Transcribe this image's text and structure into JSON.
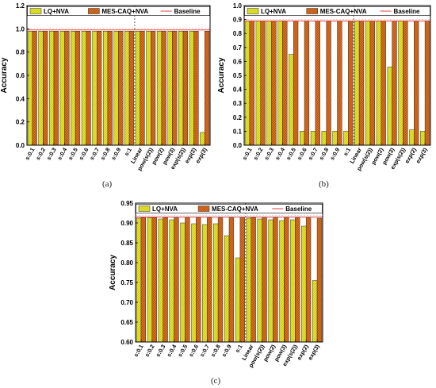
{
  "colors": {
    "lq": "#e4e62a",
    "mes": "#e0701e",
    "baseline": "#e04040"
  },
  "captions": [
    "(a)",
    "(b)",
    "(c)"
  ],
  "chart_data": [
    {
      "type": "bar",
      "ylabel": "Accuracy",
      "ylim": [
        0.0,
        1.2
      ],
      "yticks": [
        "0.0",
        "0.2",
        "0.4",
        "0.6",
        "0.8",
        "1.0",
        "1.2"
      ],
      "categories": [
        "s:0.1",
        "s:0.2",
        "s:0.3",
        "s:0.4",
        "s:0.5",
        "s:0.6",
        "s:0.7",
        "s:0.8",
        "s:0.9",
        "s:1",
        "Linear",
        "pow(s(2))",
        "pow(2)",
        "pow(3)",
        "exp(s(2))",
        "exp(2)",
        "exp(3)"
      ],
      "series": [
        {
          "name": "LQ+NVA",
          "values": [
            0.98,
            0.98,
            0.98,
            0.98,
            0.98,
            0.98,
            0.98,
            0.98,
            0.98,
            0.98,
            0.98,
            0.98,
            0.98,
            0.98,
            0.98,
            0.98,
            0.11
          ]
        },
        {
          "name": "MES-CAQ+NVA",
          "values": [
            0.98,
            0.98,
            0.98,
            0.98,
            0.98,
            0.98,
            0.98,
            0.98,
            0.98,
            0.98,
            0.98,
            0.98,
            0.98,
            0.98,
            0.98,
            0.98,
            0.98
          ]
        }
      ],
      "baseline": {
        "name": "Baseline",
        "value": 0.99
      },
      "legend": "top",
      "divider_after_index": 9
    },
    {
      "type": "bar",
      "ylabel": "Accuracy",
      "ylim": [
        0.0,
        1.0
      ],
      "yticks": [
        "0.0",
        "0.1",
        "0.2",
        "0.3",
        "0.4",
        "0.5",
        "0.6",
        "0.7",
        "0.8",
        "0.9",
        "1.0"
      ],
      "categories": [
        "s:0.1",
        "s:0.2",
        "s:0.3",
        "s:0.4",
        "s:0.5",
        "s:0.6",
        "s:0.7",
        "s:0.8",
        "s:0.9",
        "s:1",
        "Linear",
        "pow(s(2))",
        "pow(2)",
        "pow(3)",
        "exp(s(2))",
        "exp(2)",
        "exp(3)"
      ],
      "series": [
        {
          "name": "LQ+NVA",
          "values": [
            0.89,
            0.89,
            0.89,
            0.89,
            0.65,
            0.1,
            0.1,
            0.1,
            0.1,
            0.1,
            0.89,
            0.89,
            0.89,
            0.56,
            0.89,
            0.11,
            0.1
          ]
        },
        {
          "name": "MES-CAQ+NVA",
          "values": [
            0.89,
            0.89,
            0.89,
            0.89,
            0.89,
            0.89,
            0.89,
            0.89,
            0.89,
            0.89,
            0.89,
            0.89,
            0.89,
            0.89,
            0.89,
            0.89,
            0.89
          ]
        }
      ],
      "baseline": {
        "name": "Baseline",
        "value": 0.89
      },
      "legend": "top",
      "divider_after_index": 9
    },
    {
      "type": "bar",
      "ylabel": "Accuracy",
      "ylim": [
        0.6,
        0.95
      ],
      "yticks": [
        "0.60",
        "0.65",
        "0.70",
        "0.75",
        "0.80",
        "0.85",
        "0.90",
        "0.95"
      ],
      "categories": [
        "s:0.1",
        "s:0.2",
        "s:0.3",
        "s:0.4",
        "s:0.5",
        "s:0.6",
        "s:0.7",
        "s:0.8",
        "s:0.9",
        "s:1",
        "Linear",
        "pow(s(2))",
        "pow(2)",
        "pow(3)",
        "exp(s(2))",
        "exp(2)",
        "exp(3)"
      ],
      "series": [
        {
          "name": "LQ+NVA",
          "values": [
            0.912,
            0.913,
            0.91,
            0.908,
            0.9,
            0.898,
            0.896,
            0.898,
            0.868,
            0.812,
            0.912,
            0.91,
            0.908,
            0.906,
            0.908,
            0.892,
            0.755
          ]
        },
        {
          "name": "MES-CAQ+NVA",
          "values": [
            0.914,
            0.914,
            0.914,
            0.913,
            0.913,
            0.913,
            0.913,
            0.913,
            0.913,
            0.913,
            0.914,
            0.913,
            0.913,
            0.913,
            0.913,
            0.913,
            0.912
          ]
        }
      ],
      "baseline": {
        "name": "Baseline",
        "value": 0.915
      },
      "legend": "top",
      "divider_after_index": 9
    }
  ]
}
